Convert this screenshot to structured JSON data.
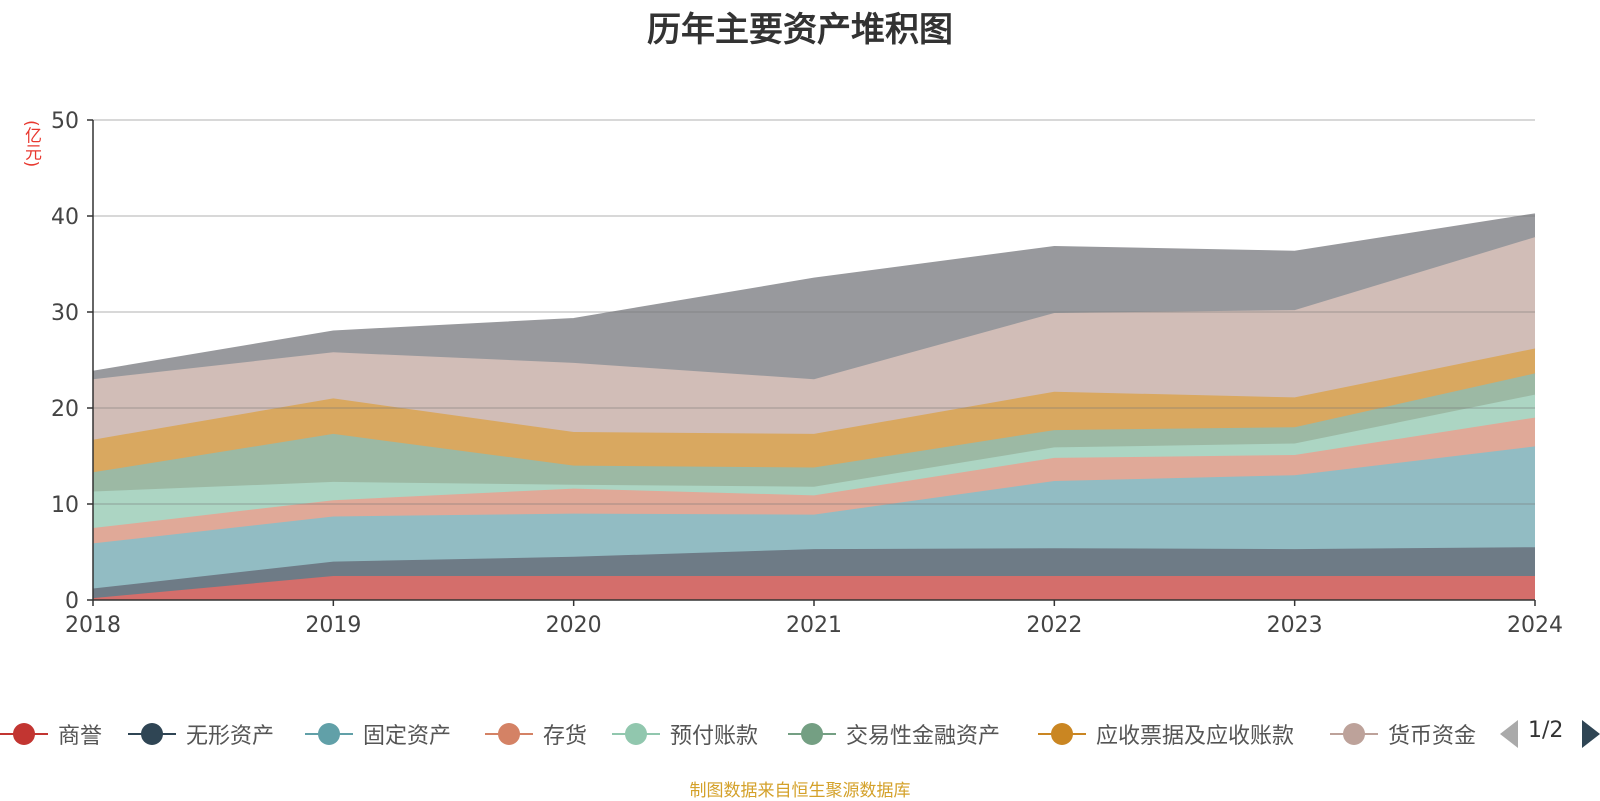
{
  "chart_data": {
    "type": "area",
    "stacked": true,
    "title": "历年主要资产堆积图",
    "unit": "(亿元)",
    "x": [
      "2018",
      "2019",
      "2020",
      "2021",
      "2022",
      "2023",
      "2024"
    ],
    "ylim": [
      0,
      50
    ],
    "yticks": [
      0,
      10,
      20,
      30,
      40,
      50
    ],
    "grid": true,
    "series": [
      {
        "name": "商誉",
        "color": "#c23531",
        "fill": "#d46e6b",
        "values": [
          0.2,
          2.5,
          2.5,
          2.5,
          2.5,
          2.5,
          2.5
        ]
      },
      {
        "name": "无形资产",
        "color": "#2f4554",
        "fill": "#6e7b86",
        "values": [
          1.0,
          1.5,
          2.0,
          2.8,
          2.9,
          2.8,
          3.0
        ]
      },
      {
        "name": "固定资产",
        "color": "#61a0a8",
        "fill": "#92bcc3",
        "values": [
          4.7,
          4.7,
          4.5,
          3.6,
          7.0,
          7.7,
          10.5
        ]
      },
      {
        "name": "存货",
        "color": "#d48265",
        "fill": "#e0a998",
        "values": [
          1.6,
          1.7,
          2.6,
          2.0,
          2.4,
          2.1,
          3.0
        ]
      },
      {
        "name": "预付账款",
        "color": "#91c7ae",
        "fill": "#acd5c3",
        "values": [
          3.8,
          1.9,
          0.4,
          0.9,
          1.1,
          1.2,
          2.4
        ]
      },
      {
        "name": "交易性金融资产",
        "color": "#749f83",
        "fill": "#9cb9a4",
        "values": [
          2.0,
          5.0,
          2.0,
          2.0,
          1.8,
          1.7,
          2.2
        ]
      },
      {
        "name": "应收票据及应收账款",
        "color": "#ca8622",
        "fill": "#d9a860",
        "values": [
          3.4,
          3.7,
          3.5,
          3.5,
          4.0,
          3.1,
          2.6
        ]
      },
      {
        "name": "货币资金",
        "color": "#bda29a",
        "fill": "#d1bdb7",
        "values": [
          6.3,
          4.8,
          7.2,
          5.7,
          8.2,
          9.1,
          11.6
        ]
      },
      {
        "name": "",
        "color": "#6e7074",
        "fill": "#98999d",
        "values": [
          0.8,
          2.2,
          4.6,
          10.5,
          6.9,
          6.1,
          2.4
        ]
      }
    ]
  },
  "legend": {
    "items": [
      "商誉",
      "无形资产",
      "固定资产",
      "存货",
      "预付账款",
      "交易性金融资产",
      "应收票据及应收账款",
      "货币资金"
    ],
    "page_text": "1/2"
  },
  "footer": {
    "source": "制图数据来自恒生聚源数据库"
  }
}
